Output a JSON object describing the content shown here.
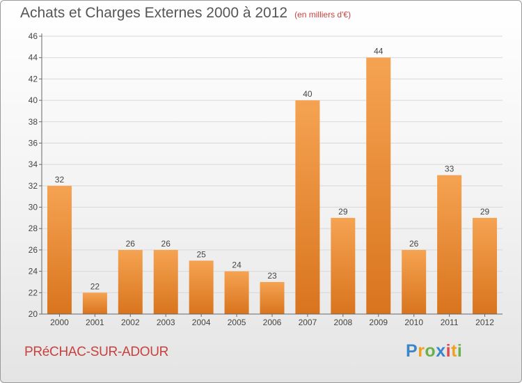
{
  "chart_data": {
    "type": "bar",
    "title": "Achats et Charges Externes 2000 à 2012",
    "subtitle": "(en milliers d'€)",
    "categories": [
      "2000",
      "2001",
      "2002",
      "2003",
      "2004",
      "2005",
      "2006",
      "2007",
      "2008",
      "2009",
      "2010",
      "2011",
      "2012"
    ],
    "values": [
      32,
      22,
      26,
      26,
      25,
      24,
      23,
      40,
      29,
      44,
      26,
      33,
      29
    ],
    "ylim": [
      20,
      46
    ],
    "yticks": [
      20,
      22,
      24,
      26,
      28,
      30,
      32,
      34,
      36,
      38,
      40,
      42,
      44,
      46
    ],
    "grid": true,
    "bar_color_top": "#f5a352",
    "bar_color_bottom": "#d9741e"
  },
  "location": "PRéCHAC-SUR-ADOUR",
  "logo": {
    "letters": [
      "P",
      "r",
      "o",
      "x",
      "i",
      "t",
      "i"
    ],
    "colors": [
      "#3a86c8",
      "#f0a020",
      "#6ab04c",
      "#3a86c8",
      "#e0484a",
      "#f0a020",
      "#6ab04c"
    ]
  }
}
